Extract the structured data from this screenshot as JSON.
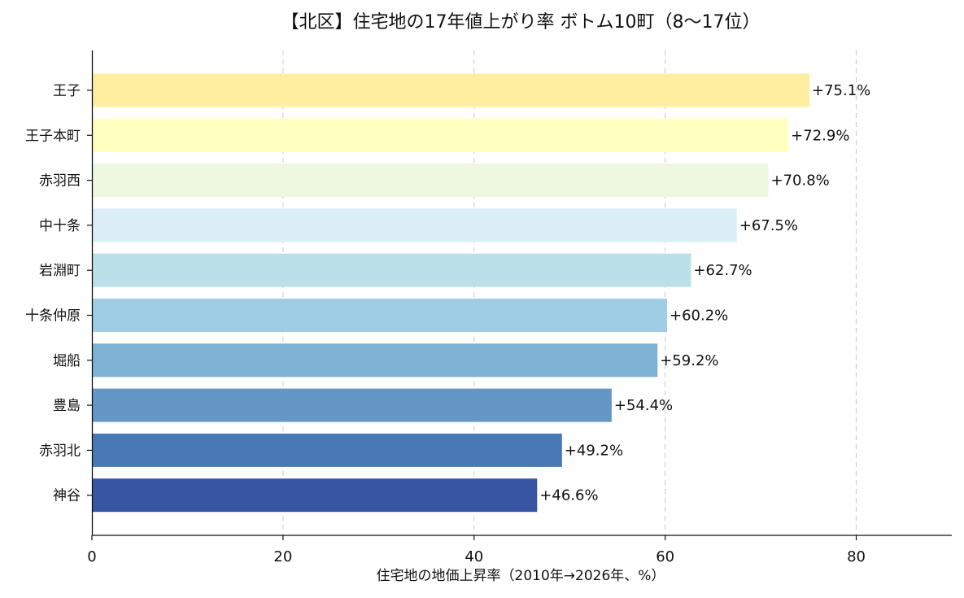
{
  "chart_data": {
    "type": "bar",
    "orientation": "horizontal",
    "title": "【北区】住宅地の17年値上がり率 ボトム10町（8〜17位）",
    "xlabel": "住宅地の地価上昇率（2010年→2026年、%）",
    "ylabel": "",
    "xlim": [
      0,
      90
    ],
    "xticks": [
      0,
      20,
      40,
      60,
      80
    ],
    "grid": "x",
    "categories": [
      "王子",
      "王子本町",
      "赤羽西",
      "中十条",
      "岩淵町",
      "十条仲原",
      "堀船",
      "豊島",
      "赤羽北",
      "神谷"
    ],
    "values": [
      75.1,
      72.9,
      70.8,
      67.5,
      62.7,
      60.2,
      59.2,
      54.4,
      49.2,
      46.6
    ],
    "data_labels": [
      "+75.1%",
      "+72.9%",
      "+70.8%",
      "+67.5%",
      "+62.7%",
      "+60.2%",
      "+59.2%",
      "+54.4%",
      "+49.2%",
      "+46.6%"
    ],
    "colors": [
      "#ffeda0",
      "#ffffbf",
      "#edf8df",
      "#dbeef5",
      "#bbe0ea",
      "#9ecde4",
      "#7db2d5",
      "#6497c6",
      "#4878b6",
      "#3855a3"
    ]
  }
}
